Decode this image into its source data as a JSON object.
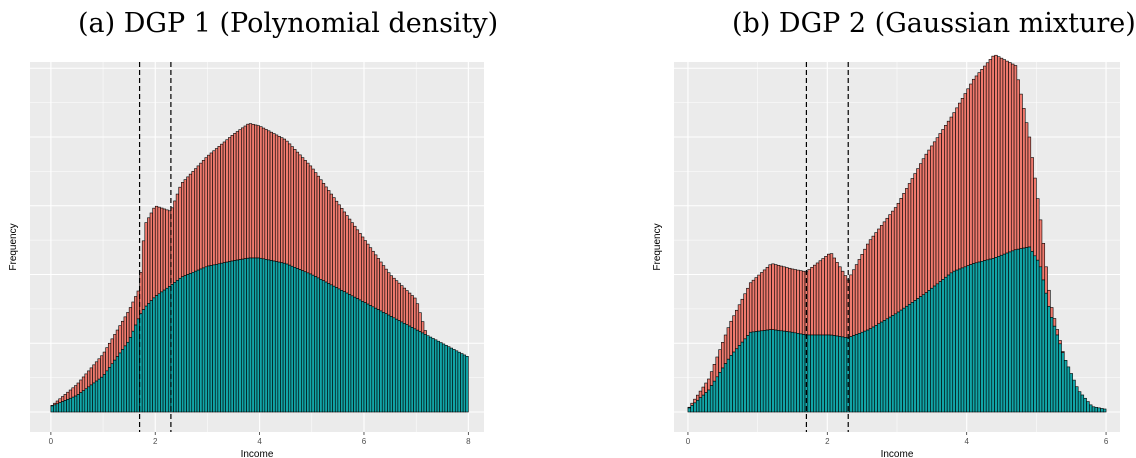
{
  "colors": {
    "panel_bg": "#ebebeb",
    "grid": "#ffffff",
    "upper_fill": "#f07a6e",
    "lower_fill": "#12a5a7",
    "bar_outline": "#000000",
    "threshold_line": "#000000"
  },
  "chart_data": [
    {
      "type": "bar",
      "subtype": "stacked histogram",
      "title": "(a) DGP 1 (Polynomial density)",
      "xlabel": "Income",
      "ylabel": "Frequency",
      "xlim": [
        -0.4,
        8.3
      ],
      "ylim": [
        0,
        100
      ],
      "x_ticks": [
        0,
        2,
        4,
        6,
        8
      ],
      "x_tick_labels": [
        "0",
        "2",
        "4",
        "6",
        "8"
      ],
      "y_tick_labels_shown": false,
      "grid": true,
      "bin_width": 0.05,
      "threshold_lines": [
        1.7,
        2.3
      ],
      "x": [
        0.0,
        0.5,
        1.0,
        1.5,
        1.7,
        1.8,
        2.0,
        2.3,
        2.5,
        3.0,
        3.5,
        3.8,
        4.0,
        4.5,
        5.0,
        5.5,
        6.0,
        6.5,
        7.0,
        7.2,
        7.5,
        8.0
      ],
      "lower": [
        2,
        6,
        13,
        26,
        35,
        38,
        42,
        46,
        49,
        53,
        55,
        56,
        56,
        54,
        50,
        45,
        40,
        35,
        30,
        28,
        25,
        20
      ],
      "total": [
        2,
        10,
        21,
        37,
        45,
        68,
        75,
        73,
        83,
        93,
        101,
        105,
        104,
        99,
        89,
        76,
        63,
        50,
        41,
        28,
        25,
        20
      ]
    },
    {
      "type": "bar",
      "subtype": "stacked histogram",
      "title": "(b) DGP 2 (Gaussian mixture)",
      "xlabel": "Income",
      "ylabel": "Frequency",
      "xlim": [
        -0.2,
        6.2
      ],
      "ylim": [
        0,
        100
      ],
      "x_ticks": [
        0,
        2,
        4,
        6
      ],
      "x_tick_labels": [
        "0",
        "2",
        "4",
        "6"
      ],
      "y_tick_labels_shown": false,
      "grid": true,
      "bin_width": 0.04,
      "threshold_lines": [
        1.7,
        2.3
      ],
      "x": [
        0.0,
        0.3,
        0.6,
        0.9,
        1.2,
        1.5,
        1.7,
        1.9,
        2.05,
        2.3,
        2.6,
        3.0,
        3.4,
        3.8,
        4.1,
        4.4,
        4.7,
        4.9,
        5.05,
        5.2,
        5.4,
        5.6,
        5.8,
        6.0
      ],
      "lower": [
        1,
        8,
        20,
        29,
        30,
        29,
        28,
        28,
        28,
        27,
        30,
        36,
        43,
        51,
        54,
        56,
        59,
        60,
        54,
        36,
        20,
        8,
        2,
        1
      ],
      "total": [
        1,
        12,
        32,
        47,
        54,
        52,
        51,
        55,
        58,
        48,
        62,
        75,
        93,
        108,
        121,
        130,
        126,
        100,
        72,
        40,
        20,
        8,
        2,
        1
      ]
    }
  ]
}
